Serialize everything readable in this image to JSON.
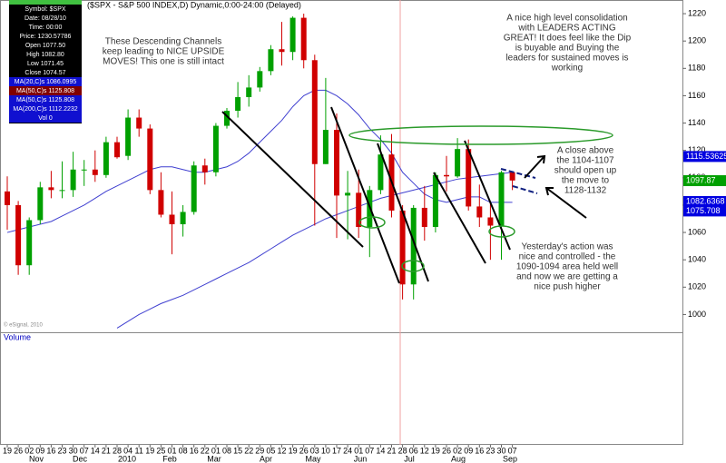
{
  "chart_data": {
    "type": "candlestick",
    "title": "($SPX - S&P 500 INDEX,D) Dynamic,0:00-24:00 (Delayed)",
    "categories": [
      "19",
      "26",
      "02",
      "09",
      "16",
      "23",
      "30",
      "07",
      "14",
      "21",
      "28",
      "04",
      "11",
      "19",
      "25",
      "01",
      "08",
      "16",
      "22",
      "01",
      "08",
      "15",
      "22",
      "29",
      "05",
      "12",
      "19",
      "26",
      "03",
      "10",
      "17",
      "24",
      "01",
      "07",
      "14",
      "21",
      "28",
      "06",
      "12",
      "19",
      "26",
      "02",
      "09",
      "16",
      "23",
      "30",
      "07"
    ],
    "months": [
      "Nov",
      "Dec",
      "2010",
      "Feb",
      "Mar",
      "Apr",
      "May",
      "Jun",
      "Jul",
      "Aug",
      "Sep"
    ],
    "open": [
      1090,
      1080,
      1036,
      1069,
      1093,
      1091,
      1091,
      1106,
      1106,
      1102,
      1126,
      1116,
      1144,
      1136,
      1091,
      1073,
      1066,
      1075,
      1109,
      1104,
      1138,
      1149,
      1159,
      1166,
      1178,
      1194,
      1192,
      1217,
      1186,
      1110,
      1135,
      1087,
      1089,
      1064,
      1091,
      1117,
      1076,
      1022,
      1078,
      1064,
      1102,
      1101,
      1121,
      1079,
      1071,
      1065,
      1104
    ],
    "high": [
      1101,
      1083,
      1071,
      1097,
      1105,
      1112,
      1119,
      1113,
      1120,
      1130,
      1130,
      1150,
      1150,
      1139,
      1104,
      1090,
      1080,
      1112,
      1114,
      1140,
      1151,
      1170,
      1175,
      1181,
      1197,
      1214,
      1218,
      1220,
      1190,
      1173,
      1147,
      1105,
      1106,
      1094,
      1131,
      1132,
      1080,
      1080,
      1094,
      1104,
      1116,
      1129,
      1128,
      1095,
      1082,
      1105,
      1103
    ],
    "low": [
      1062,
      1029,
      1029,
      1066,
      1085,
      1085,
      1086,
      1094,
      1097,
      1100,
      1114,
      1113,
      1130,
      1088,
      1071,
      1044,
      1057,
      1073,
      1095,
      1101,
      1136,
      1144,
      1152,
      1163,
      1175,
      1182,
      1186,
      1180,
      1065,
      1110,
      1056,
      1055,
      1056,
      1042,
      1088,
      1071,
      1011,
      1011,
      1054,
      1060,
      1090,
      1100,
      1076,
      1064,
      1040,
      1040,
      1091
    ],
    "close": [
      1080,
      1036,
      1069,
      1093,
      1091,
      1091,
      1106,
      1106,
      1102,
      1126,
      1115,
      1144,
      1136,
      1091,
      1073,
      1066,
      1075,
      1109,
      1104,
      1138,
      1149,
      1159,
      1166,
      1178,
      1194,
      1192,
      1217,
      1186,
      1110,
      1135,
      1087,
      1089,
      1064,
      1091,
      1117,
      1076,
      1022,
      1078,
      1064,
      1102,
      1101,
      1121,
      1079,
      1071,
      1065,
      1104,
      1098
    ],
    "up_color": "#00a000",
    "down_color": "#d00000",
    "moving_averages": [
      {
        "color": "#4040d0",
        "values": [
          1060,
          1062,
          1064,
          1066,
          1068,
          1072,
          1076,
          1080,
          1085,
          1090,
          1094,
          1098,
          1102,
          1106,
          1108,
          1108,
          1106,
          1104,
          1104,
          1106,
          1108,
          1112,
          1118,
          1126,
          1134,
          1142,
          1152,
          1160,
          1164,
          1164,
          1160,
          1154,
          1146,
          1136,
          1128,
          1118,
          1104,
          1096,
          1088,
          1084,
          1082,
          1084,
          1086,
          1086,
          1082,
          1082,
          1082
        ]
      },
      {
        "color": "#4040d0",
        "values": [
          null,
          null,
          null,
          null,
          null,
          null,
          null,
          null,
          null,
          null,
          990,
          995,
          1000,
          1004,
          1008,
          1011,
          1014,
          1018,
          1022,
          1026,
          1030,
          1034,
          1038,
          1043,
          1048,
          1053,
          1058,
          1062,
          1066,
          1070,
          1073,
          1076,
          1079,
          1082,
          1085,
          1087,
          1089,
          1091,
          1093,
          1095,
          1097,
          1099,
          1100,
          1101,
          1102,
          1103,
          1104
        ]
      }
    ],
    "ylim": [
      987,
      1230
    ],
    "yticks": [
      1000,
      1020,
      1040,
      1060,
      1080,
      1100,
      1120,
      1140,
      1160,
      1180,
      1200,
      1220
    ],
    "price_markers": [
      {
        "value": 1115.53625,
        "color": "#0000e0"
      },
      {
        "value": 1097.87,
        "color": "#00a000"
      },
      {
        "value": 1082.6368,
        "color": "#0000e0"
      },
      {
        "value": 1075.708,
        "color": "#0000e0"
      }
    ],
    "info_panel": [
      "Symbol: $SPX",
      "Date: 08/28/10",
      "Time: 00:00",
      "Price: 1230.57786",
      "Open 1077.50",
      "High 1082.80",
      "Low 1071.45",
      "Close 1074.57",
      "MA(20,C)s 1086.0995",
      "MA(50,C)s 1125.808",
      "MA(50,C)s 1125.808",
      "MA(200,C)s 1112.2232",
      "Vol 0"
    ],
    "annotations": [
      {
        "lines": [
          "These Descending  Channels",
          "keep leading to NICE UPSIDE",
          "MOVES!  This one is still intact"
        ]
      },
      {
        "lines": [
          "A nice high level consolidation",
          "with LEADERS ACTING",
          "GREAT!  It does feel like the Dip",
          "is buyable and Buying the",
          "leaders for sustained moves is",
          "working"
        ]
      },
      {
        "lines": [
          "A close above",
          "the 1104-1107",
          "should open up",
          "the move to",
          "1128-1132"
        ]
      },
      {
        "lines": [
          "Yesterday's action was",
          "nice and controlled - the",
          "1090-1094 area held well",
          "and now we are getting a",
          "nice push higher"
        ]
      }
    ],
    "volume_label": "Volume",
    "copyright": "© eSignal, 2010"
  }
}
